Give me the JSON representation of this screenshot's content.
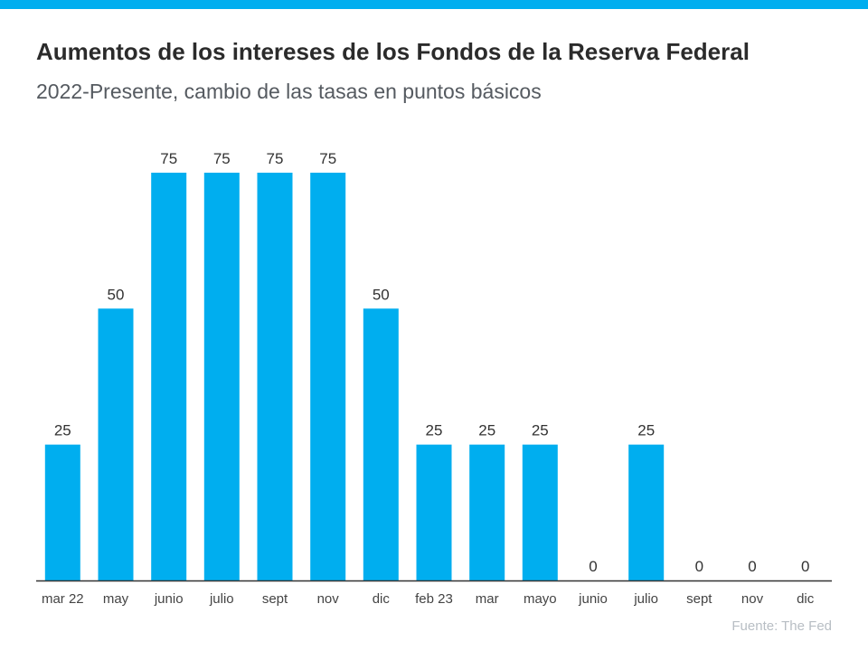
{
  "colors": {
    "accent": "#00aeef",
    "axis": "#333333",
    "text": "#333333"
  },
  "header": {
    "title": "Aumentos de los intereses de los Fondos de la Reserva Federal",
    "subtitle": "2022-Presente, cambio de las tasas en puntos básicos"
  },
  "footer": {
    "source": "Fuente: The Fed"
  },
  "chart_data": {
    "type": "bar",
    "title": "Aumentos de los intereses de los Fondos de la Reserva Federal",
    "subtitle": "2022-Presente, cambio de las tasas en puntos básicos",
    "categories": [
      "mar 22",
      "may",
      "junio",
      "julio",
      "sept",
      "nov",
      "dic",
      "feb 23",
      "mar",
      "mayo",
      "junio",
      "julio",
      "sept",
      "nov",
      "dic"
    ],
    "values": [
      25,
      50,
      75,
      75,
      75,
      75,
      50,
      25,
      25,
      25,
      0,
      25,
      0,
      0,
      0
    ],
    "xlabel": "",
    "ylabel": "",
    "ylim": [
      0,
      75
    ],
    "grid": false,
    "legend": "none",
    "data_labels": true
  }
}
